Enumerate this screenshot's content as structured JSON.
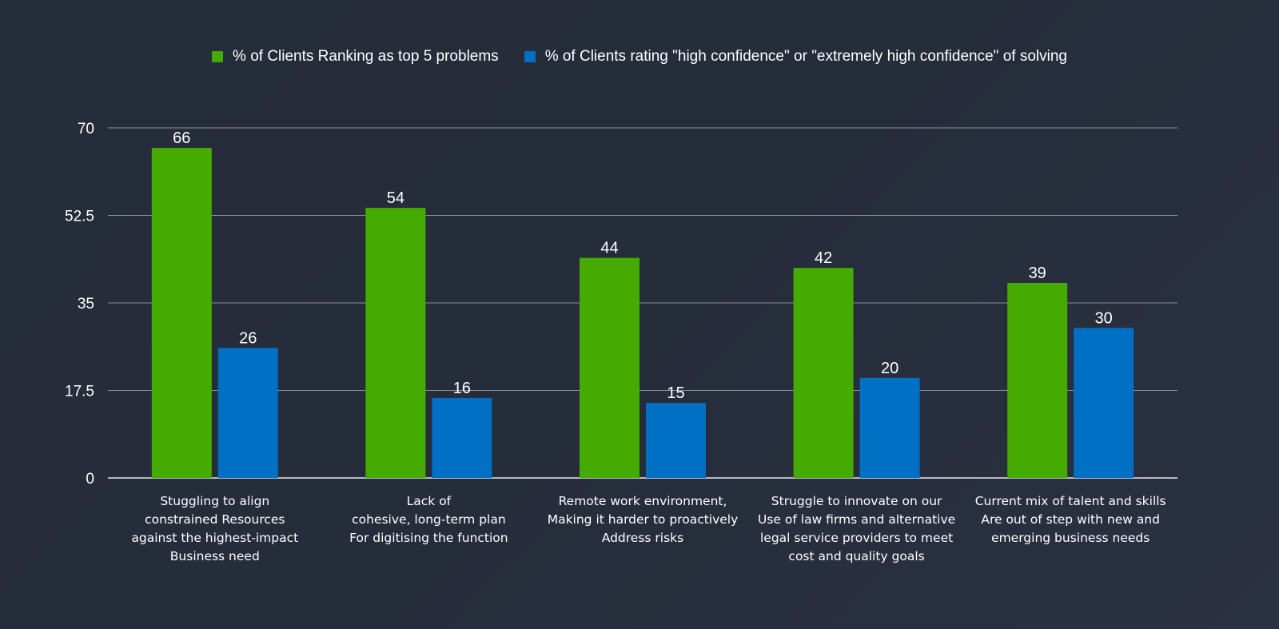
{
  "chart_data": {
    "type": "bar",
    "categories": [
      "Stuggling to align\nconstrained Resources\nagainst the highest-impact\nBusiness need",
      "Lack of\ncohesive, long-term plan\nFor digitising the function",
      "Remote work environment,\nMaking it harder to proactively\nAddress risks",
      "Struggle to innovate on our\nUse of law firms and alternative\nlegal service providers to meet\ncost and quality goals",
      "Current mix of talent and skills\nAre out of step with new and\nemerging business needs"
    ],
    "series": [
      {
        "name": "% of Clients Ranking as top 5 problems",
        "color": "#46ab00",
        "values": [
          66,
          54,
          44,
          42,
          39
        ]
      },
      {
        "name": "% of Clients rating \"high confidence\" or \"extremely high confidence\" of solving",
        "color": "#0070c4",
        "values": [
          26,
          16,
          15,
          20,
          30
        ]
      }
    ],
    "yticks": [
      "0",
      "17.5",
      "35",
      "52.5",
      "70"
    ],
    "ylim": [
      0,
      70
    ],
    "grid": true,
    "legend_position": "top-center",
    "data_labels": true
  }
}
